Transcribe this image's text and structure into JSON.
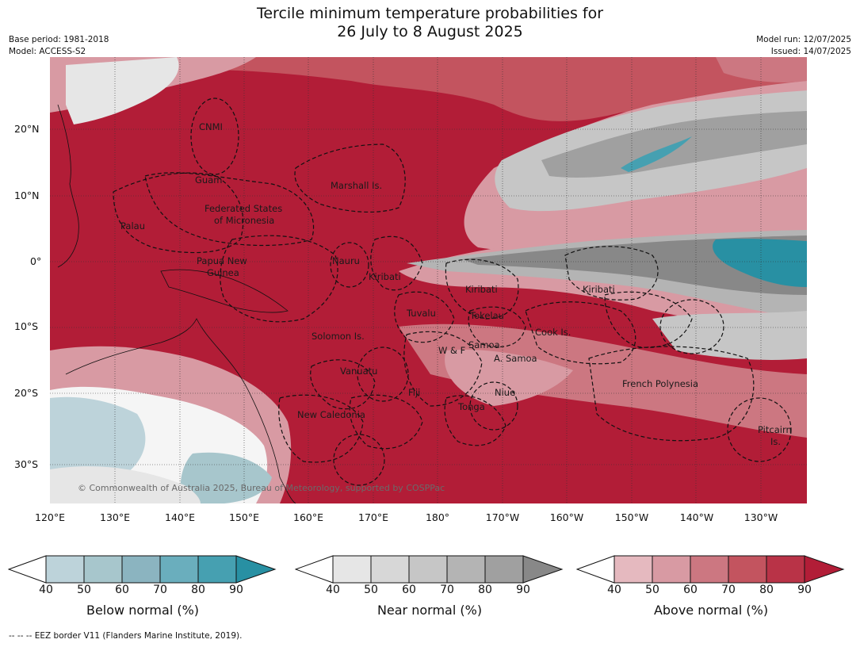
{
  "title_line1": "Tercile minimum temperature probabilities for",
  "title_line2": "26 July to 8 August 2025",
  "meta": {
    "base_period": "Base period: 1981-2018",
    "model": "Model: ACCESS-S2",
    "model_run": "Model run: 12/07/2025",
    "issued": "Issued: 14/07/2025"
  },
  "axes": {
    "lat_ticks": [
      "20°N",
      "10°N",
      "0°",
      "10°S",
      "20°S",
      "30°S"
    ],
    "lon_ticks": [
      "120°E",
      "130°E",
      "140°E",
      "150°E",
      "160°E",
      "170°E",
      "180°",
      "170°W",
      "160°W",
      "150°W",
      "140°W",
      "130°W"
    ]
  },
  "places": [
    {
      "name": "CNMI"
    },
    {
      "name": "Guam"
    },
    {
      "name": "Marshall Is."
    },
    {
      "name": "Federated States"
    },
    {
      "name": "of Micronesia"
    },
    {
      "name": "Palau"
    },
    {
      "name": "Papua New"
    },
    {
      "name": "Guinea"
    },
    {
      "name": "Nauru"
    },
    {
      "name": "Kiribati"
    },
    {
      "name": "Kiribati"
    },
    {
      "name": "Kiribati"
    },
    {
      "name": "Tuvalu"
    },
    {
      "name": "Tokelau"
    },
    {
      "name": "Cook Is."
    },
    {
      "name": "Solomon Is."
    },
    {
      "name": "W & F"
    },
    {
      "name": "Samoa"
    },
    {
      "name": "A. Samoa"
    },
    {
      "name": "Vanuatu"
    },
    {
      "name": "Fiji"
    },
    {
      "name": "Niue"
    },
    {
      "name": "French Polynesia"
    },
    {
      "name": "Tonga"
    },
    {
      "name": "New Caledonia"
    },
    {
      "name": "Pitcairn"
    },
    {
      "name": "Is."
    }
  ],
  "copyright": "© Commonwealth of Australia 2025, Bureau of Meteorology, supported by COSPPac",
  "colorbars": [
    {
      "title": "Below normal (%)",
      "ticks": [
        "40",
        "50",
        "60",
        "70",
        "80",
        "90"
      ],
      "colors": [
        "#bdd3da",
        "#a7c6cc",
        "#8bb4c0",
        "#6aaebd",
        "#46a0b1",
        "#2890a3"
      ]
    },
    {
      "title": "Near normal (%)",
      "ticks": [
        "40",
        "50",
        "60",
        "70",
        "80",
        "90"
      ],
      "colors": [
        "#e6e6e6",
        "#d7d7d7",
        "#c6c6c6",
        "#b4b4b4",
        "#a0a0a0",
        "#888888"
      ]
    },
    {
      "title": "Above normal (%)",
      "ticks": [
        "40",
        "50",
        "60",
        "70",
        "80",
        "90"
      ],
      "colors": [
        "#e5b9bf",
        "#d89aa3",
        "#cc7781",
        "#c3545f",
        "#b93347",
        "#b21d37"
      ]
    }
  ],
  "footer": "--  --  -- EEZ border V11 (Flanders Marine Institute, 2019)."
}
